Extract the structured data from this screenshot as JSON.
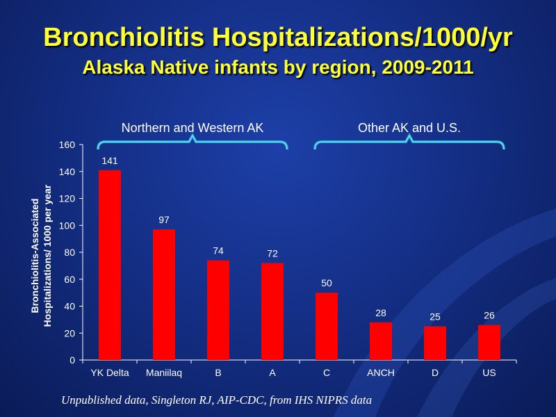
{
  "title": "Bronchiolitis Hospitalizations/1000/yr",
  "subtitle": "Alaska Native infants by region, 2009-2011",
  "source_note": "Unpublished data, Singleton RJ, AIP-CDC, from IHS NIPRS data",
  "colors": {
    "bar": "#ff0000",
    "text": "#ffffff",
    "title": "#ffff33",
    "bracket": "#1aa7d8"
  },
  "groups": [
    {
      "label": "Northern and Western AK",
      "categories": [
        "YK Delta",
        "Maniilaq",
        "B",
        "A"
      ]
    },
    {
      "label": "Other AK and U.S.",
      "categories": [
        "C",
        "ANCH",
        "D",
        "US"
      ]
    }
  ],
  "chart_data": {
    "type": "bar",
    "categories": [
      "YK Delta",
      "Maniilaq",
      "B",
      "A",
      "C",
      "ANCH",
      "D",
      "US"
    ],
    "values": [
      141,
      97,
      74,
      72,
      50,
      28,
      25,
      26
    ],
    "data_labels": [
      "141",
      "97",
      "74",
      "72",
      "50",
      "28",
      "25",
      "26"
    ],
    "ylabel_lines": [
      "Bronchiolitis-Associated",
      "Hospitalizations/ 1000 per year"
    ],
    "ylim": [
      0,
      160
    ],
    "yticks": [
      0,
      20,
      40,
      60,
      80,
      100,
      120,
      140,
      160
    ],
    "grid": false,
    "legend": "none"
  }
}
